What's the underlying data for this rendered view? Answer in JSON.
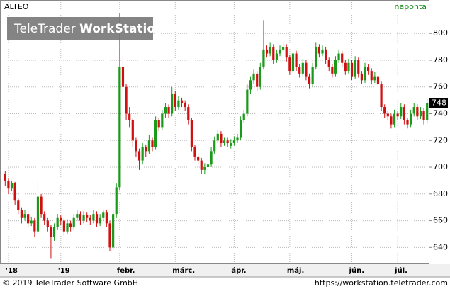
{
  "chart_data": {
    "type": "candlestick",
    "title": "ALTEO",
    "interval": "naponta",
    "watermark_brand": "TeleTrader",
    "watermark_product": "WorkStation",
    "footer_left": "© 2019 TeleTrader Software GmbH",
    "footer_right": "https://workstation.teletrader.com",
    "up_color": "#1a9a1a",
    "down_color": "#d01010",
    "grid": true,
    "ylim": [
      628,
      825
    ],
    "yticks": [
      640,
      660,
      680,
      700,
      720,
      740,
      760,
      780,
      800
    ],
    "categories": [
      null,
      "'18",
      null,
      null,
      null,
      null,
      null,
      null,
      null,
      null,
      null,
      null,
      null,
      null,
      null,
      null,
      null,
      "'19",
      null,
      null,
      null,
      null,
      null,
      null,
      null,
      null,
      null,
      null,
      null,
      null,
      null,
      null,
      null,
      null,
      null,
      "febr.",
      null,
      null,
      null,
      null,
      null,
      null,
      null,
      null,
      null,
      null,
      null,
      null,
      null,
      null,
      null,
      null,
      "márc.",
      null,
      null,
      null,
      null,
      null,
      null,
      null,
      null,
      null,
      null,
      null,
      null,
      null,
      null,
      null,
      null,
      null,
      "ápr.",
      null,
      null,
      null,
      null,
      null,
      null,
      null,
      null,
      null,
      null,
      null,
      null,
      null,
      null,
      null,
      null,
      "máj.",
      null,
      null,
      null,
      null,
      null,
      null,
      null,
      null,
      null,
      null,
      null,
      null,
      null,
      null,
      null,
      null,
      null,
      null,
      "jún.",
      null,
      null,
      null,
      null,
      null,
      null,
      null,
      null,
      null,
      null,
      null,
      null,
      null,
      "júl.",
      null,
      null,
      null,
      null,
      null,
      null,
      null,
      null,
      null
    ],
    "ohlc": [
      [
        695,
        697,
        686,
        690
      ],
      [
        690,
        692,
        680,
        684
      ],
      [
        684,
        690,
        682,
        688
      ],
      [
        688,
        689,
        672,
        675
      ],
      [
        675,
        677,
        665,
        668
      ],
      [
        668,
        670,
        658,
        662
      ],
      [
        662,
        668,
        660,
        665
      ],
      [
        665,
        667,
        655,
        658
      ],
      [
        658,
        663,
        656,
        660
      ],
      [
        660,
        662,
        648,
        652
      ],
      [
        652,
        690,
        650,
        678
      ],
      [
        678,
        680,
        662,
        665
      ],
      [
        665,
        667,
        657,
        660
      ],
      [
        660,
        662,
        652,
        655
      ],
      [
        655,
        657,
        632,
        648
      ],
      [
        648,
        658,
        645,
        655
      ],
      [
        655,
        665,
        653,
        662
      ],
      [
        662,
        664,
        657,
        660
      ],
      [
        660,
        662,
        649,
        652
      ],
      [
        652,
        661,
        650,
        658
      ],
      [
        658,
        660,
        652,
        655
      ],
      [
        655,
        665,
        653,
        662
      ],
      [
        662,
        668,
        660,
        665
      ],
      [
        665,
        667,
        657,
        660
      ],
      [
        660,
        667,
        658,
        664
      ],
      [
        664,
        666,
        659,
        662
      ],
      [
        662,
        664,
        657,
        660
      ],
      [
        660,
        668,
        658,
        665
      ],
      [
        665,
        667,
        655,
        658
      ],
      [
        658,
        665,
        656,
        662
      ],
      [
        662,
        668,
        660,
        666
      ],
      [
        666,
        668,
        655,
        658
      ],
      [
        658,
        660,
        637,
        640
      ],
      [
        640,
        668,
        638,
        665
      ],
      [
        665,
        688,
        662,
        685
      ],
      [
        685,
        815,
        683,
        775
      ],
      [
        775,
        782,
        755,
        760
      ],
      [
        760,
        762,
        735,
        740
      ],
      [
        740,
        745,
        730,
        735
      ],
      [
        735,
        737,
        715,
        720
      ],
      [
        720,
        722,
        708,
        712
      ],
      [
        712,
        714,
        698,
        705
      ],
      [
        705,
        718,
        702,
        715
      ],
      [
        715,
        717,
        708,
        712
      ],
      [
        712,
        724,
        710,
        720
      ],
      [
        720,
        722,
        712,
        715
      ],
      [
        715,
        738,
        713,
        735
      ],
      [
        735,
        737,
        727,
        730
      ],
      [
        730,
        743,
        728,
        740
      ],
      [
        740,
        748,
        737,
        745
      ],
      [
        745,
        747,
        737,
        740
      ],
      [
        740,
        760,
        738,
        755
      ],
      [
        755,
        757,
        742,
        745
      ],
      [
        745,
        753,
        743,
        750
      ],
      [
        750,
        752,
        745,
        748
      ],
      [
        748,
        750,
        742,
        745
      ],
      [
        745,
        747,
        732,
        735
      ],
      [
        735,
        737,
        712,
        715
      ],
      [
        715,
        717,
        705,
        708
      ],
      [
        708,
        710,
        702,
        705
      ],
      [
        705,
        707,
        695,
        698
      ],
      [
        698,
        703,
        695,
        700
      ],
      [
        700,
        705,
        696,
        702
      ],
      [
        702,
        715,
        700,
        712
      ],
      [
        712,
        723,
        710,
        720
      ],
      [
        720,
        728,
        718,
        725
      ],
      [
        725,
        727,
        715,
        718
      ],
      [
        718,
        722,
        716,
        720
      ],
      [
        720,
        722,
        715,
        718
      ],
      [
        716,
        721,
        714,
        718
      ],
      [
        718,
        723,
        716,
        720
      ],
      [
        720,
        725,
        718,
        722
      ],
      [
        722,
        738,
        720,
        735
      ],
      [
        735,
        743,
        733,
        740
      ],
      [
        740,
        762,
        738,
        758
      ],
      [
        758,
        768,
        755,
        765
      ],
      [
        765,
        773,
        762,
        770
      ],
      [
        770,
        772,
        757,
        760
      ],
      [
        760,
        778,
        758,
        775
      ],
      [
        775,
        810,
        773,
        788
      ],
      [
        788,
        791,
        782,
        785
      ],
      [
        785,
        793,
        783,
        790
      ],
      [
        790,
        792,
        777,
        780
      ],
      [
        780,
        788,
        778,
        785
      ],
      [
        785,
        791,
        783,
        788
      ],
      [
        788,
        793,
        786,
        790
      ],
      [
        790,
        792,
        779,
        782
      ],
      [
        782,
        784,
        769,
        772
      ],
      [
        772,
        788,
        770,
        785
      ],
      [
        785,
        787,
        772,
        775
      ],
      [
        775,
        777,
        767,
        770
      ],
      [
        770,
        781,
        768,
        778
      ],
      [
        778,
        780,
        765,
        768
      ],
      [
        768,
        770,
        759,
        762
      ],
      [
        762,
        778,
        760,
        775
      ],
      [
        775,
        793,
        773,
        790
      ],
      [
        790,
        792,
        782,
        785
      ],
      [
        785,
        791,
        783,
        788
      ],
      [
        788,
        790,
        777,
        780
      ],
      [
        780,
        782,
        772,
        775
      ],
      [
        775,
        777,
        767,
        770
      ],
      [
        770,
        783,
        768,
        780
      ],
      [
        780,
        788,
        778,
        785
      ],
      [
        785,
        787,
        775,
        778
      ],
      [
        778,
        780,
        769,
        772
      ],
      [
        772,
        781,
        770,
        778
      ],
      [
        778,
        780,
        765,
        768
      ],
      [
        768,
        783,
        766,
        780
      ],
      [
        780,
        782,
        767,
        770
      ],
      [
        770,
        772,
        762,
        765
      ],
      [
        765,
        778,
        763,
        775
      ],
      [
        775,
        777,
        769,
        772
      ],
      [
        772,
        774,
        762,
        765
      ],
      [
        765,
        771,
        763,
        768
      ],
      [
        768,
        770,
        759,
        762
      ],
      [
        762,
        764,
        742,
        745
      ],
      [
        745,
        747,
        737,
        740
      ],
      [
        740,
        742,
        735,
        738
      ],
      [
        738,
        740,
        729,
        732
      ],
      [
        732,
        743,
        730,
        740
      ],
      [
        740,
        742,
        735,
        738
      ],
      [
        738,
        748,
        736,
        745
      ],
      [
        745,
        747,
        732,
        735
      ],
      [
        735,
        737,
        729,
        732
      ],
      [
        732,
        743,
        730,
        740
      ],
      [
        740,
        748,
        738,
        745
      ],
      [
        745,
        747,
        735,
        738
      ],
      [
        738,
        745,
        736,
        742
      ],
      [
        742,
        744,
        732,
        735
      ],
      [
        735,
        751,
        733,
        748
      ]
    ]
  }
}
